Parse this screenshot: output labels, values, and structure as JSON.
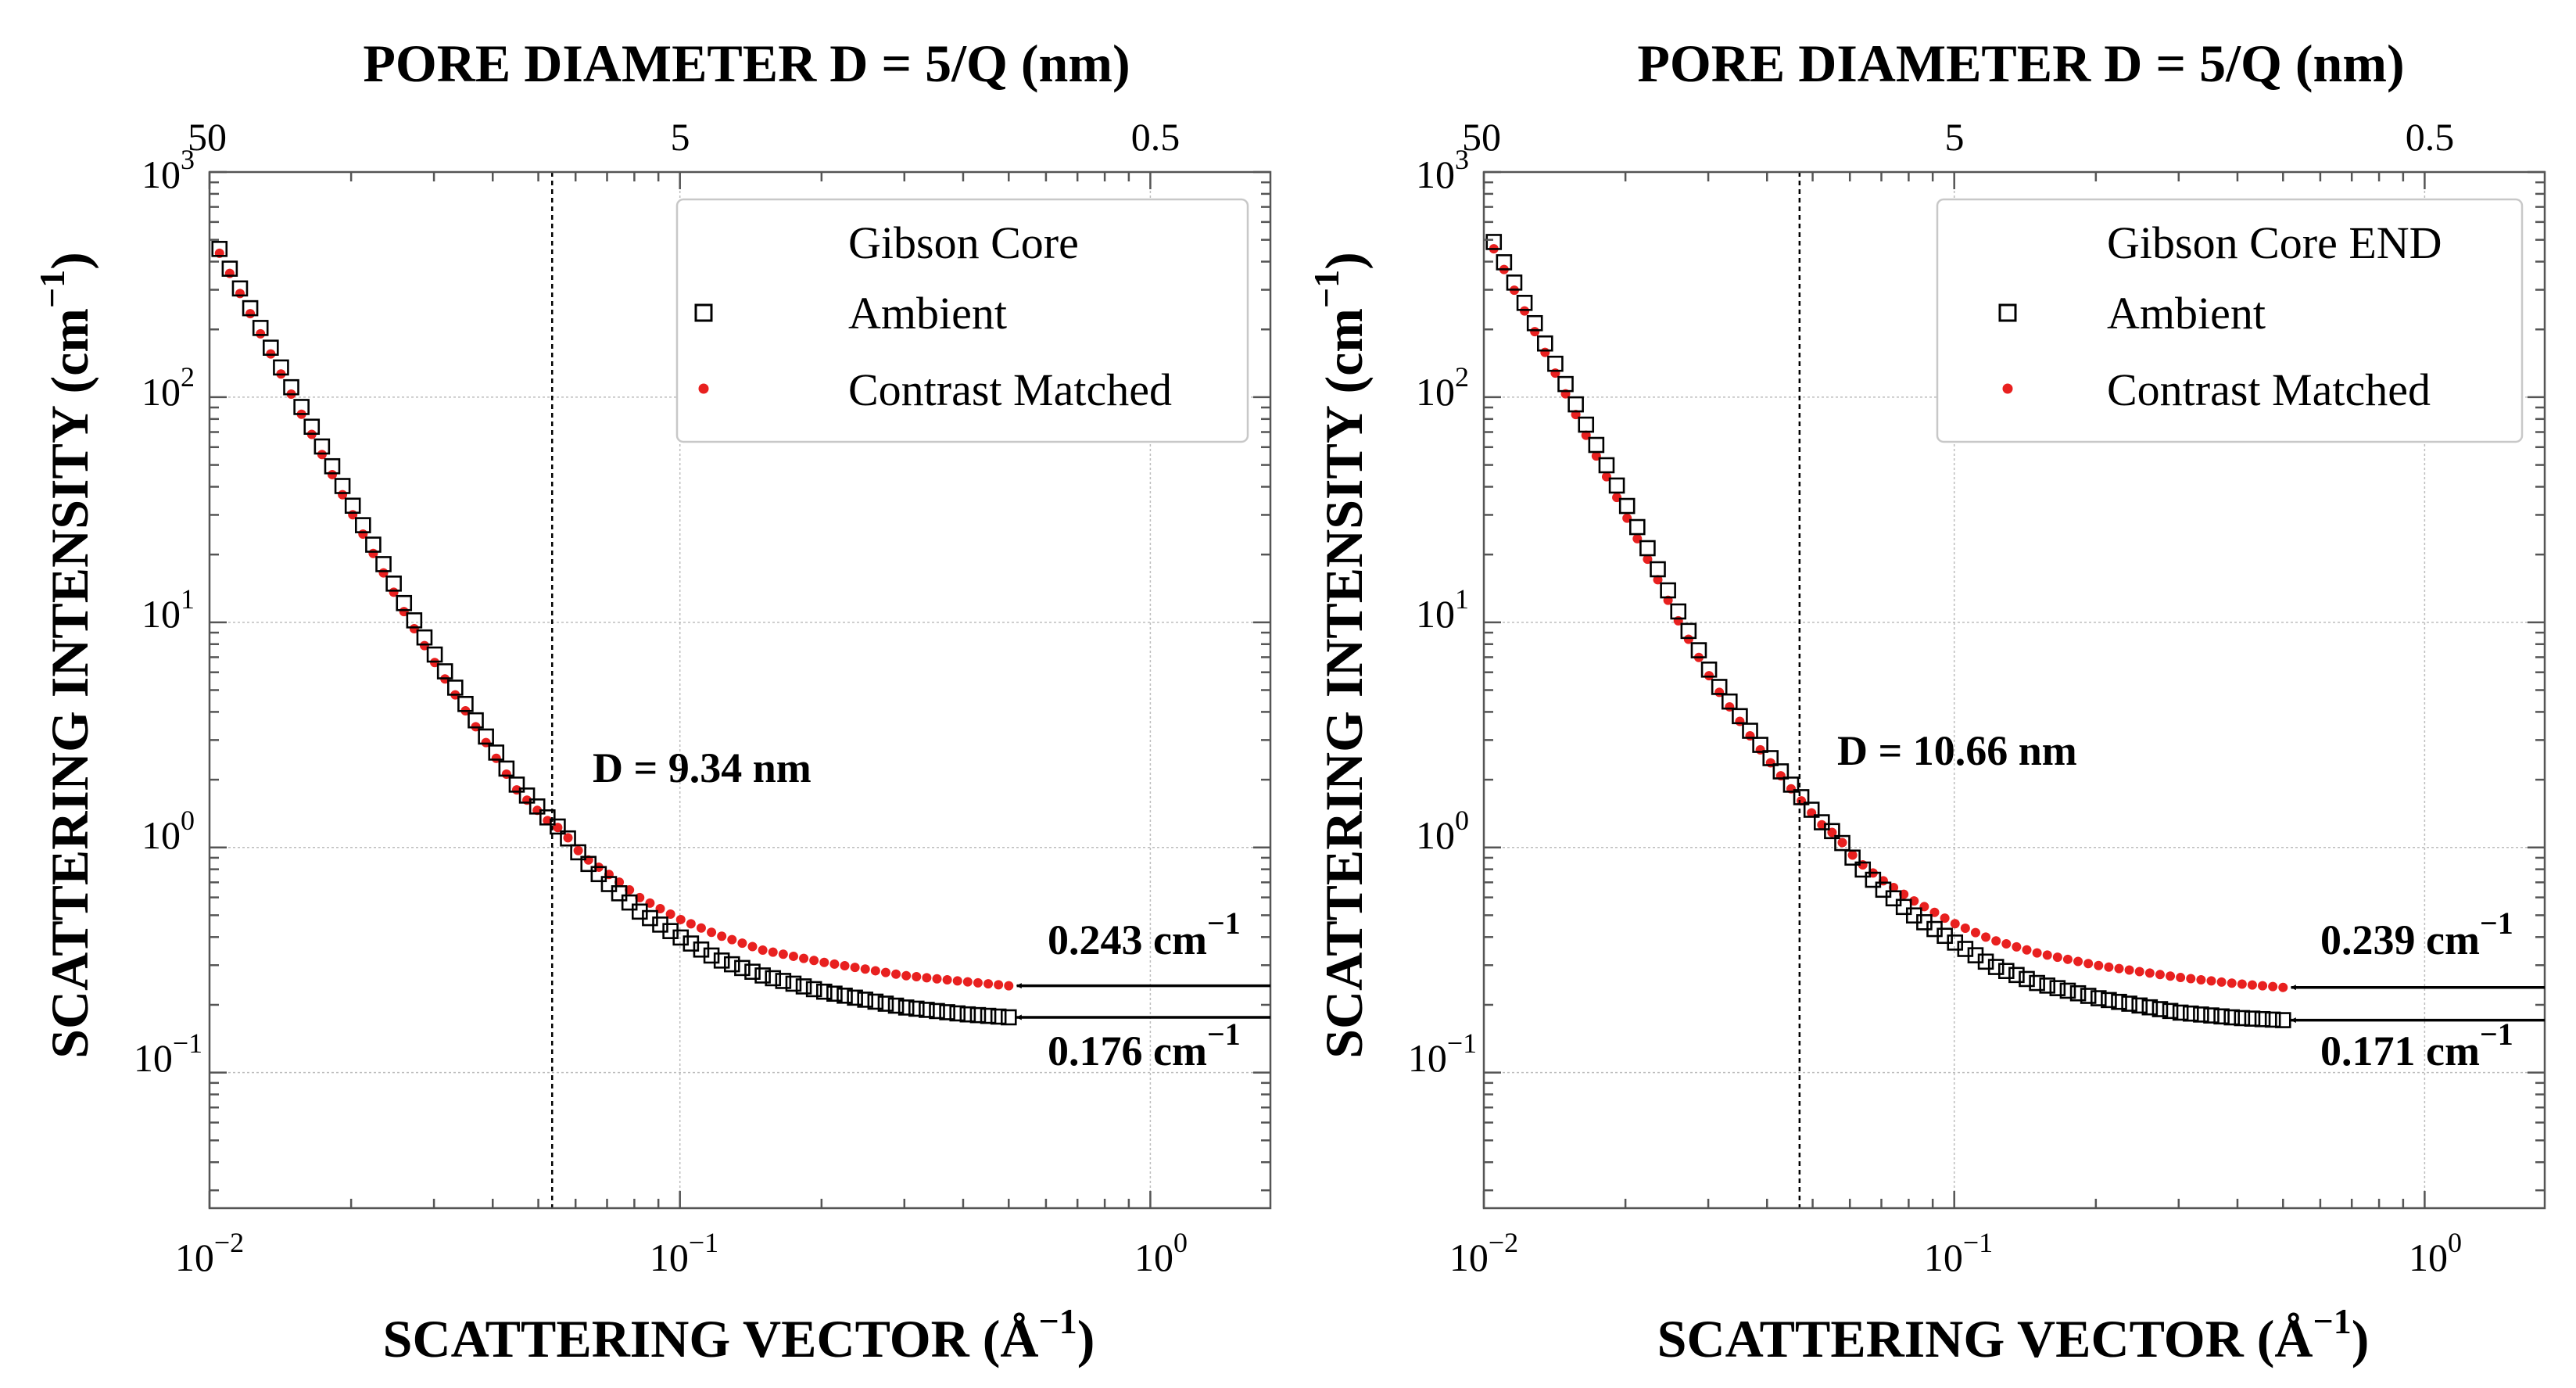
{
  "chart_data": [
    {
      "type": "scatter",
      "title": "PORE DIAMETER D = 5/Q (nm)",
      "xlabel": "SCATTERING VECTOR (Å",
      "xlabel_sup": "−1",
      "xlabel_close": ")",
      "ylabel": "SCATTERING INTENSITY (cm",
      "ylabel_sup": "−1",
      "ylabel_close": ")",
      "xscale": "log",
      "yscale": "log",
      "xlim": [
        0.01,
        1.8
      ],
      "ylim": [
        0.025,
        1000
      ],
      "grid": true,
      "x_ticks": [
        {
          "value": 0.01,
          "base": "10",
          "exp": "−2"
        },
        {
          "value": 0.1,
          "base": "10",
          "exp": "−1"
        },
        {
          "value": 1,
          "base": "10",
          "exp": "0"
        }
      ],
      "y_ticks": [
        {
          "value": 0.1,
          "base": "10",
          "exp": "−1"
        },
        {
          "value": 1,
          "base": "10",
          "exp": "0"
        },
        {
          "value": 10,
          "base": "10",
          "exp": "1"
        },
        {
          "value": 100,
          "base": "10",
          "exp": "2"
        },
        {
          "value": 1000,
          "base": "10",
          "exp": "3"
        }
      ],
      "top_ticks": [
        {
          "value": 0.01,
          "label": "50"
        },
        {
          "value": 0.1,
          "label": "5"
        },
        {
          "value": 1,
          "label": "0.5"
        }
      ],
      "legend": {
        "title": "Gibson Core",
        "position": "top-right",
        "entries": [
          {
            "label": "Ambient",
            "marker": "square-open",
            "color": "#000000"
          },
          {
            "label": "Contrast Matched",
            "marker": "dot",
            "color": "#e8201f"
          }
        ]
      },
      "vline": {
        "x": 0.0535,
        "label": "D = 9.34 nm"
      },
      "series": [
        {
          "name": "Ambient",
          "q_range": [
            0.0105,
            0.5
          ],
          "n": 78,
          "k": [
            0.0153,
            0.02,
            0.026,
            0.031,
            0.038,
            0.045,
            0.053,
            0.056,
            0.062,
            0.07,
            0.082,
            0.1,
            0.12,
            0.15,
            0.2,
            0.3,
            0.4,
            0.5
          ],
          "v": [
            100,
            34,
            12,
            6.5,
            3.3,
            1.9,
            1.32,
            1.2,
            0.9,
            0.7,
            0.52,
            0.4,
            0.32,
            0.27,
            0.23,
            0.195,
            0.182,
            0.176
          ]
        },
        {
          "name": "Contrast Matched",
          "q_range": [
            0.0105,
            0.5
          ],
          "n": 78,
          "k": [
            0.0153,
            0.02,
            0.026,
            0.031,
            0.038,
            0.045,
            0.053,
            0.056,
            0.062,
            0.07,
            0.082,
            0.1,
            0.12,
            0.15,
            0.2,
            0.3,
            0.4,
            0.5
          ],
          "v": [
            93,
            31,
            11,
            6,
            3.1,
            1.8,
            1.28,
            1.2,
            0.92,
            0.77,
            0.6,
            0.48,
            0.41,
            0.35,
            0.31,
            0.27,
            0.254,
            0.243
          ]
        }
      ],
      "arrows": [
        {
          "y": 0.243,
          "label": "0.243 cm",
          "sup": "−1",
          "label_side": "above"
        },
        {
          "y": 0.176,
          "label": "0.176 cm",
          "sup": "−1",
          "label_side": "below"
        }
      ]
    },
    {
      "type": "scatter",
      "title": "PORE DIAMETER D = 5/Q (nm)",
      "xlabel": "SCATTERING VECTOR (Å",
      "xlabel_sup": "−1",
      "xlabel_close": ")",
      "ylabel": "SCATTERING INTENSITY (cm",
      "ylabel_sup": "−1",
      "ylabel_close": ")",
      "xscale": "log",
      "yscale": "log",
      "xlim": [
        0.01,
        1.8
      ],
      "ylim": [
        0.025,
        1000
      ],
      "grid": true,
      "x_ticks": [
        {
          "value": 0.01,
          "base": "10",
          "exp": "−2"
        },
        {
          "value": 0.1,
          "base": "10",
          "exp": "−1"
        },
        {
          "value": 1,
          "base": "10",
          "exp": "0"
        }
      ],
      "y_ticks": [
        {
          "value": 0.1,
          "base": "10",
          "exp": "−1"
        },
        {
          "value": 1,
          "base": "10",
          "exp": "0"
        },
        {
          "value": 10,
          "base": "10",
          "exp": "1"
        },
        {
          "value": 100,
          "base": "10",
          "exp": "2"
        },
        {
          "value": 1000,
          "base": "10",
          "exp": "3"
        }
      ],
      "top_ticks": [
        {
          "value": 0.01,
          "label": "50"
        },
        {
          "value": 0.1,
          "label": "5"
        },
        {
          "value": 1,
          "label": "0.5"
        }
      ],
      "legend": {
        "title": "Gibson Core END",
        "position": "top-right",
        "entries": [
          {
            "label": "Ambient",
            "marker": "square-open",
            "color": "#000000"
          },
          {
            "label": "Contrast Matched",
            "marker": "dot",
            "color": "#e8201f"
          }
        ]
      },
      "vline": {
        "x": 0.0469,
        "label": "D = 10.66 nm"
      },
      "series": [
        {
          "name": "Ambient",
          "q_range": [
            0.0105,
            0.5
          ],
          "n": 78,
          "k": [
            0.0153,
            0.02,
            0.026,
            0.031,
            0.038,
            0.045,
            0.053,
            0.056,
            0.062,
            0.07,
            0.082,
            0.1,
            0.12,
            0.15,
            0.2,
            0.3,
            0.4,
            0.5
          ],
          "v": [
            103,
            34,
            11,
            5.5,
            3,
            1.9,
            1.25,
            1.15,
            0.85,
            0.66,
            0.5,
            0.38,
            0.3,
            0.25,
            0.215,
            0.185,
            0.175,
            0.171
          ]
        },
        {
          "name": "Contrast Matched",
          "q_range": [
            0.0105,
            0.5
          ],
          "n": 78,
          "k": [
            0.0153,
            0.02,
            0.026,
            0.031,
            0.038,
            0.045,
            0.053,
            0.056,
            0.062,
            0.07,
            0.082,
            0.1,
            0.12,
            0.15,
            0.2,
            0.3,
            0.4,
            0.5
          ],
          "v": [
            93,
            30,
            10,
            5.2,
            2.85,
            1.82,
            1.22,
            1.14,
            0.88,
            0.72,
            0.58,
            0.46,
            0.39,
            0.34,
            0.3,
            0.265,
            0.248,
            0.239
          ]
        }
      ],
      "arrows": [
        {
          "y": 0.239,
          "label": "0.239 cm",
          "sup": "−1",
          "label_side": "above"
        },
        {
          "y": 0.171,
          "label": "0.171 cm",
          "sup": "−1",
          "label_side": "below"
        }
      ]
    }
  ]
}
